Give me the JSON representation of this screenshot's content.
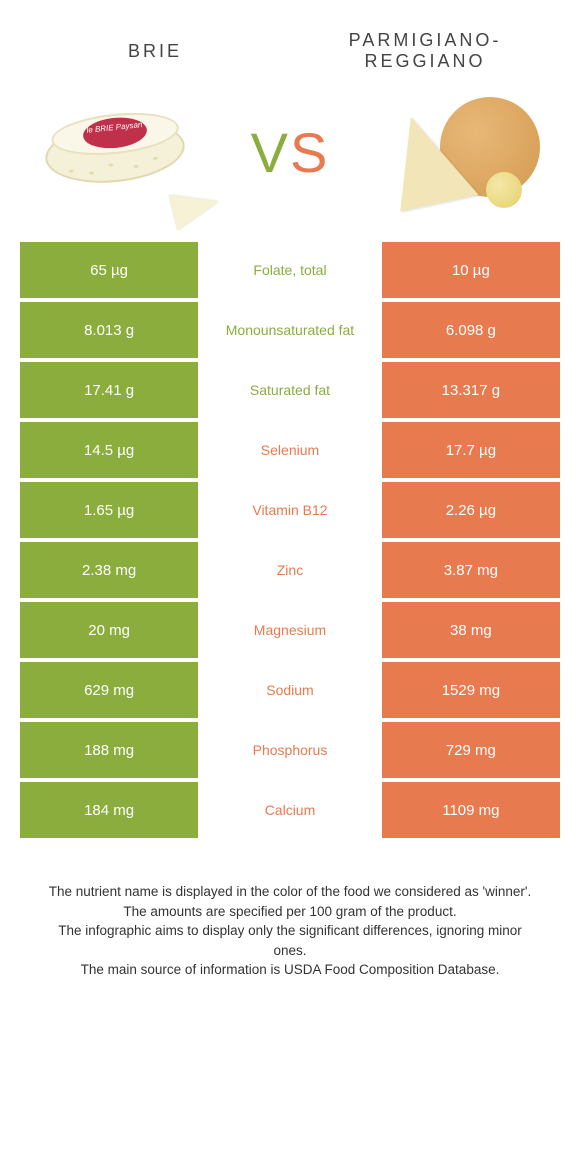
{
  "colors": {
    "left": "#8aad3d",
    "right": "#e77a4f",
    "row_gap": "#ffffff",
    "text_on_color": "#ffffff"
  },
  "left_food": {
    "title": "Brie",
    "label_text": "le BRIE Paysan"
  },
  "right_food": {
    "title": "Parmigiano-Reggiano"
  },
  "vs": {
    "v": "V",
    "s": "S"
  },
  "table": {
    "rows": [
      {
        "left": "65 µg",
        "label": "Folate, total",
        "right": "10 µg",
        "winner": "left"
      },
      {
        "left": "8.013 g",
        "label": "Monounsaturated fat",
        "right": "6.098 g",
        "winner": "left"
      },
      {
        "left": "17.41 g",
        "label": "Saturated fat",
        "right": "13.317 g",
        "winner": "left"
      },
      {
        "left": "14.5 µg",
        "label": "Selenium",
        "right": "17.7 µg",
        "winner": "right"
      },
      {
        "left": "1.65 µg",
        "label": "Vitamin B12",
        "right": "2.26 µg",
        "winner": "right"
      },
      {
        "left": "2.38 mg",
        "label": "Zinc",
        "right": "3.87 mg",
        "winner": "right"
      },
      {
        "left": "20 mg",
        "label": "Magnesium",
        "right": "38 mg",
        "winner": "right"
      },
      {
        "left": "629 mg",
        "label": "Sodium",
        "right": "1529 mg",
        "winner": "right"
      },
      {
        "left": "188 mg",
        "label": "Phosphorus",
        "right": "729 mg",
        "winner": "right"
      },
      {
        "left": "184 mg",
        "label": "Calcium",
        "right": "1109 mg",
        "winner": "right"
      }
    ]
  },
  "footnotes": [
    "The nutrient name is displayed in the color of the food we considered as 'winner'.",
    "The amounts are specified per 100 gram of the product.",
    "The infographic aims to display only the significant differences, ignoring minor ones.",
    "The main source of information is USDA Food Composition Database."
  ]
}
